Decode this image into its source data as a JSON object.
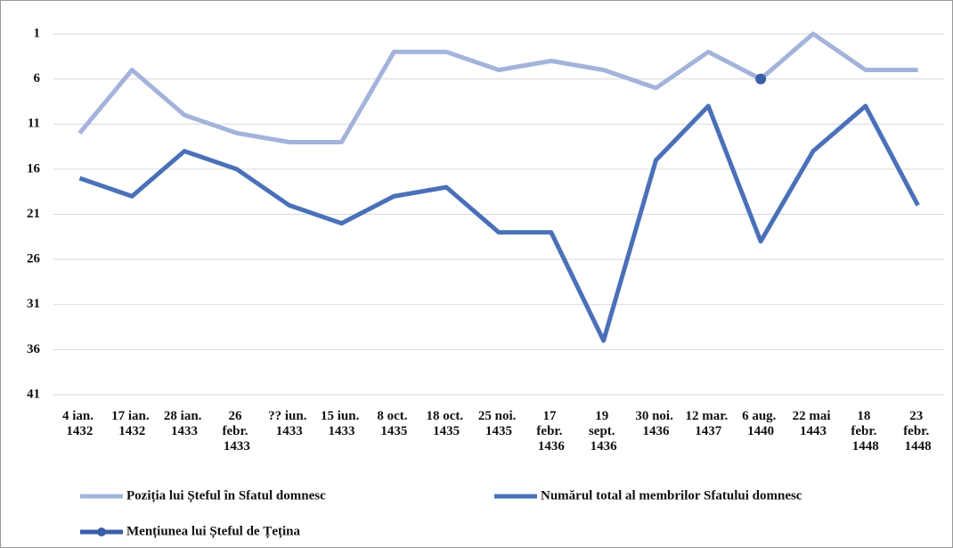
{
  "chart_data": {
    "type": "line",
    "categories": [
      "4 ian. 1432",
      "17 ian. 1432",
      "28 ian. 1433",
      "26 febr. 1433",
      "?? iun. 1433",
      "15 iun. 1433",
      "8 oct. 1435",
      "18 oct. 1435",
      "25 noi. 1435",
      "17 febr. 1436",
      "19 sept. 1436",
      "30 noi. 1436",
      "12 mar. 1437",
      "6 aug. 1440",
      "22 mai 1443",
      "18 febr. 1448",
      "23 febr. 1448"
    ],
    "series": [
      {
        "name": "Poziția lui Șteful în Sfatul domnesc",
        "color": "#a3b3dc",
        "values": [
          12,
          5,
          10,
          12,
          13,
          13,
          3,
          3,
          5,
          4,
          5,
          7,
          3,
          6,
          1,
          5,
          5
        ]
      },
      {
        "name": "Numărul total al membrilor Sfatului domnesc",
        "color": "#4a70b8",
        "values": [
          17,
          19,
          14,
          16,
          20,
          22,
          19,
          18,
          23,
          23,
          35,
          15,
          9,
          24,
          14,
          9,
          20
        ]
      },
      {
        "name": "Mențiunea lui Șteful de Țețina",
        "color": "#3a5ea8",
        "marker": true,
        "values": [
          null,
          null,
          null,
          null,
          null,
          null,
          null,
          null,
          null,
          null,
          null,
          null,
          null,
          6,
          null,
          null,
          null
        ]
      }
    ],
    "ylim": [
      1,
      41
    ],
    "yticks": [
      1,
      6,
      11,
      16,
      21,
      26,
      31,
      36,
      41
    ],
    "y_inverted": true,
    "grid": true
  }
}
